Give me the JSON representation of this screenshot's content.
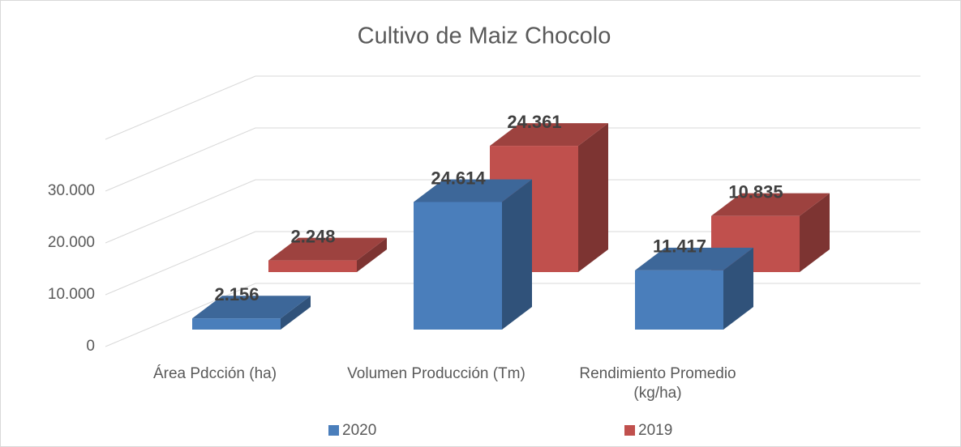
{
  "chart_data": {
    "type": "bar3d",
    "title": "Cultivo de Maiz Chocolo",
    "categories": [
      "Área Pdcción (ha)",
      "Volumen Producción (Tm)",
      "Rendimiento Promedio (kg/ha)"
    ],
    "series": [
      {
        "name": "2020",
        "color": "#4a7ebb",
        "values": [
          2156,
          24614,
          11417
        ],
        "value_labels": [
          "2.156",
          "24.614",
          "11.417"
        ]
      },
      {
        "name": "2019",
        "color": "#c0504d",
        "values": [
          2248,
          24361,
          10835
        ],
        "value_labels": [
          "2.248",
          "24.361",
          "10.835"
        ]
      }
    ],
    "ylim": [
      0,
      40000
    ],
    "yticks": [
      0,
      {
        "value": 10000,
        "label": "10.000"
      },
      {
        "value": 20000,
        "label": "20.000"
      },
      {
        "value": 30000,
        "label": "30.000"
      }
    ],
    "grid": true,
    "legend": "bottom"
  }
}
